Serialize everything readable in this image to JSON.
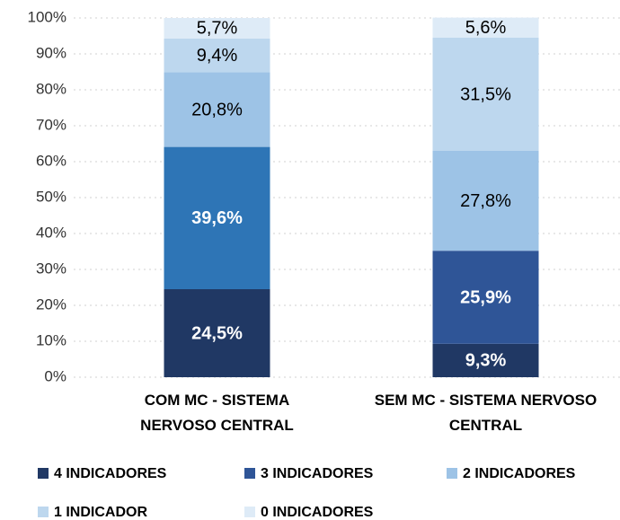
{
  "chart_data": {
    "type": "stacked_bar",
    "categories": [
      "COM MC - SISTEMA\nNERVOSO CENTRAL",
      "SEM MC - SISTEMA NERVOSO\nCENTRAL"
    ],
    "series": [
      {
        "name": "4 INDICADORES",
        "color": "#203864",
        "values": [
          24.5,
          9.3
        ],
        "value_labels": [
          "24,5%",
          "9,3%"
        ]
      },
      {
        "name": "3 INDICADORES",
        "color": "#2f5597",
        "colors": [
          "#2e75b6",
          "#2f5597"
        ],
        "values": [
          39.6,
          25.9
        ],
        "value_labels": [
          "39,6%",
          "25,9%"
        ]
      },
      {
        "name": "2 INDICADORES",
        "color": "#9dc3e6",
        "values": [
          20.8,
          27.8
        ],
        "value_labels": [
          "20,8%",
          "27,8%"
        ]
      },
      {
        "name": "1 INDICADOR",
        "color": "#bdd7ee",
        "values": [
          9.4,
          31.5
        ],
        "value_labels": [
          "9,4%",
          "31,5%"
        ]
      },
      {
        "name": "0 INDICADORES",
        "color": "#deebf7",
        "values": [
          5.7,
          5.6
        ],
        "value_labels": [
          "5,7%",
          "5,6%"
        ]
      }
    ],
    "ylim": [
      0,
      100
    ],
    "yticks": [
      {
        "value": 0,
        "label": "0%"
      },
      {
        "value": 10,
        "label": "10%"
      },
      {
        "value": 20,
        "label": "20%"
      },
      {
        "value": 30,
        "label": "30%"
      },
      {
        "value": 40,
        "label": "40%"
      },
      {
        "value": 50,
        "label": "50%"
      },
      {
        "value": 60,
        "label": "60%"
      },
      {
        "value": 70,
        "label": "70%"
      },
      {
        "value": 80,
        "label": "80%"
      },
      {
        "value": 90,
        "label": "90%"
      },
      {
        "value": 100,
        "label": "100%"
      }
    ],
    "grid": true,
    "legend": "bottom"
  }
}
